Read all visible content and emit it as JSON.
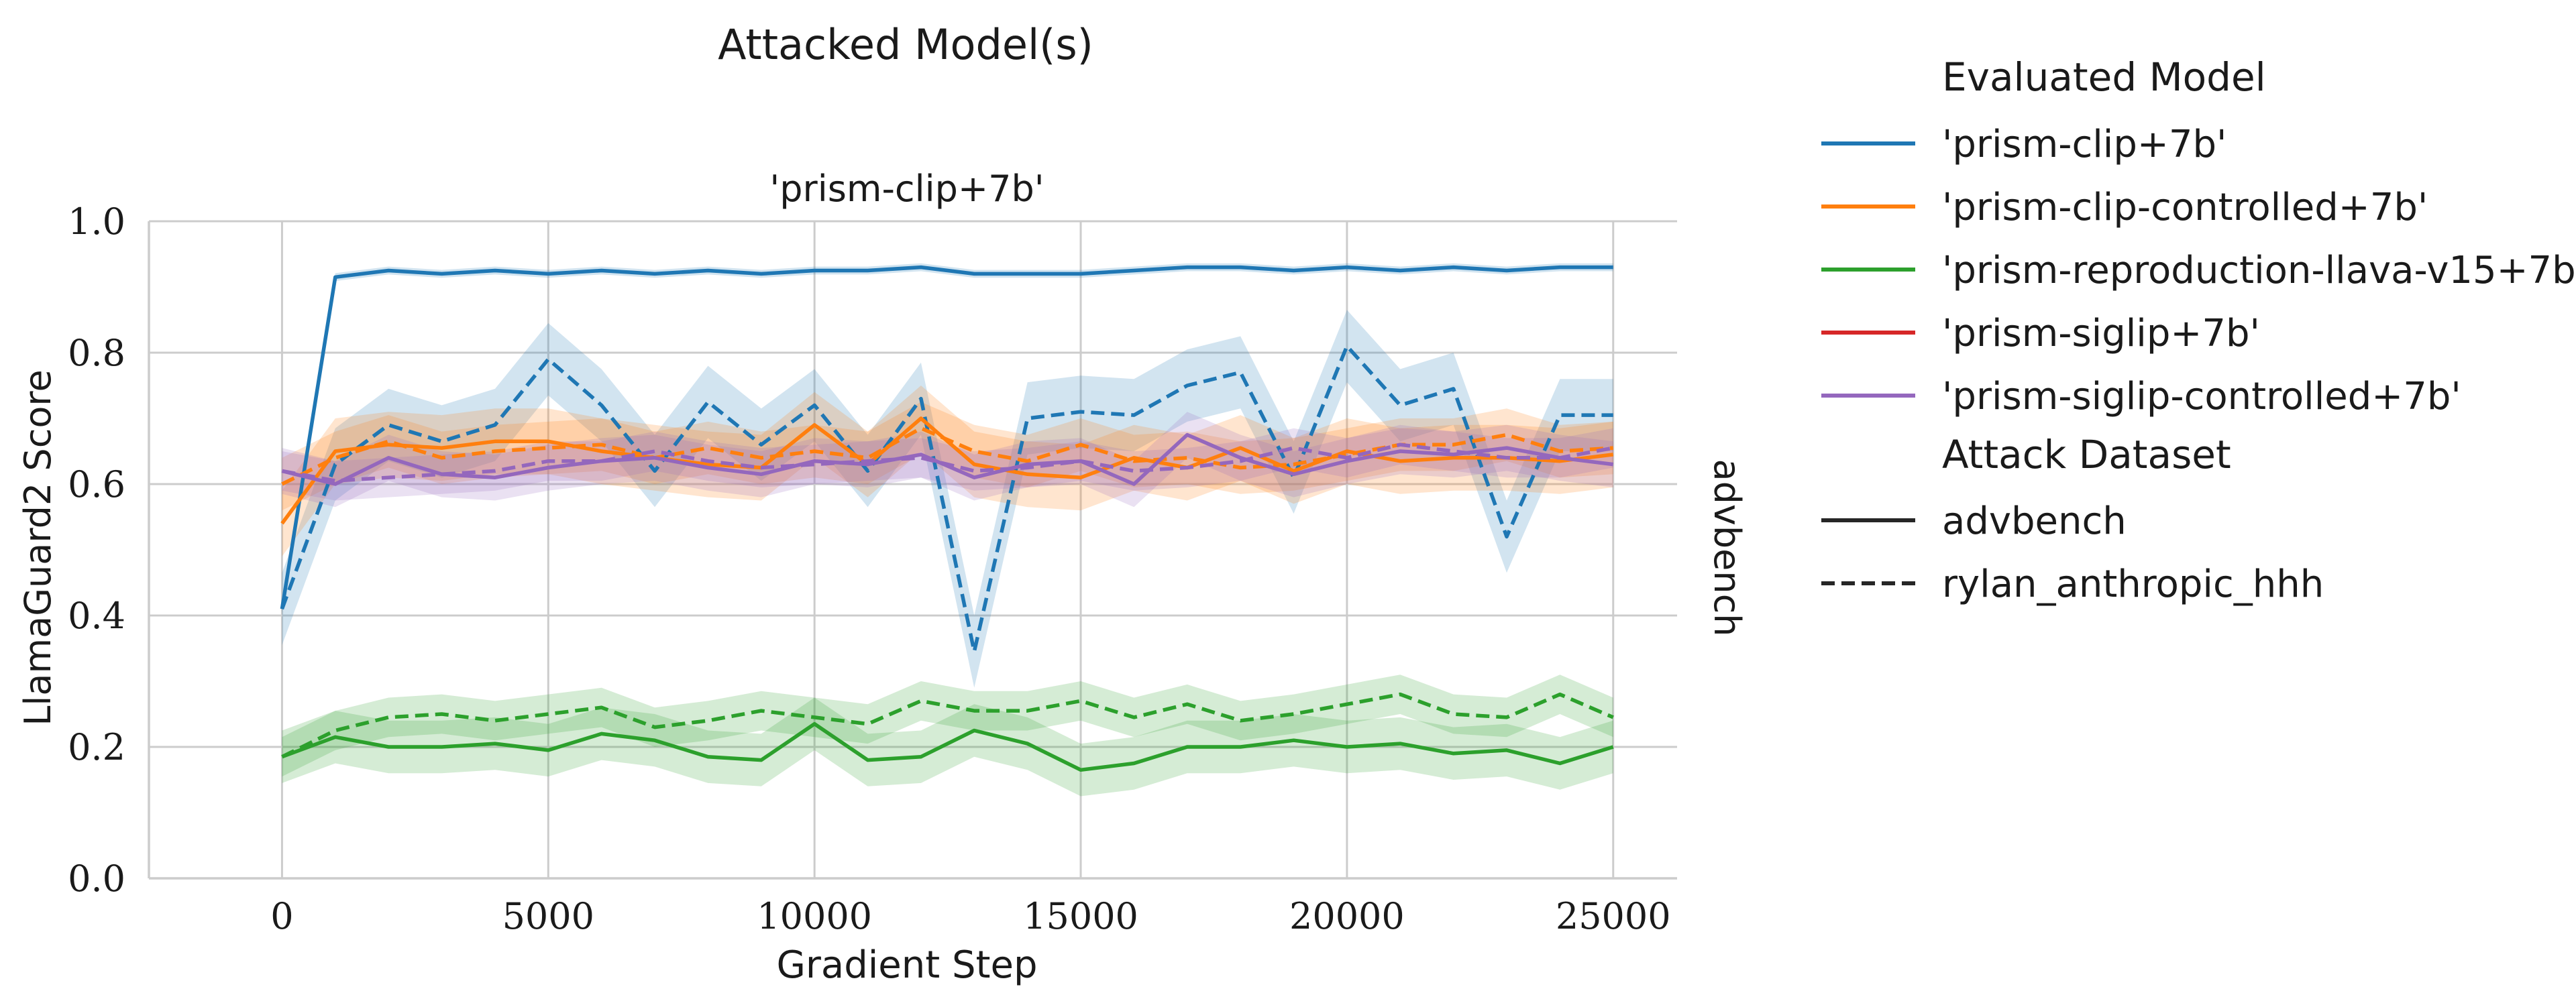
{
  "chart_data": {
    "type": "line",
    "suptitle": "Attacked Model(s)",
    "title": "'prism-clip+7b'",
    "row_label": "advbench",
    "xlabel": "Gradient Step",
    "ylabel": "LlamaGuard2 Score",
    "xlim": [
      -2500,
      26200
    ],
    "ylim": [
      0,
      1
    ],
    "xticks": [
      0,
      5000,
      10000,
      15000,
      20000,
      25000
    ],
    "yticks": [
      0.0,
      0.2,
      0.4,
      0.6,
      0.8,
      1.0
    ],
    "xtick_labels": [
      "0",
      "5000",
      "10000",
      "15000",
      "20000",
      "25000"
    ],
    "ytick_labels": [
      "0.0",
      "0.2",
      "0.4",
      "0.6",
      "0.8",
      "1.0"
    ],
    "grid": true,
    "legend_placement": "right, outside plot",
    "legend": {
      "hue_title": "Evaluated Model",
      "style_title": "Attack Dataset",
      "models": [
        {
          "label": "'prism-clip+7b'",
          "color": "#1f77b4"
        },
        {
          "label": "'prism-clip-controlled+7b'",
          "color": "#ff7f0e"
        },
        {
          "label": "'prism-reproduction-llava-v15+7b'",
          "color": "#2ca02c"
        },
        {
          "label": "'prism-siglip+7b'",
          "color": "#d62728"
        },
        {
          "label": "'prism-siglip-controlled+7b'",
          "color": "#9467bd"
        }
      ],
      "styles": [
        {
          "label": "advbench",
          "dash": "solid"
        },
        {
          "label": "rylan_anthropic_hhh",
          "dash": "dashed"
        }
      ]
    },
    "x": [
      0,
      1000,
      2000,
      3000,
      4000,
      5000,
      6000,
      7000,
      8000,
      9000,
      10000,
      11000,
      12000,
      13000,
      14000,
      15000,
      16000,
      17000,
      18000,
      19000,
      20000,
      21000,
      22000,
      23000,
      24000,
      25000
    ],
    "series": [
      {
        "model": "'prism-clip+7b'",
        "dataset": "advbench",
        "color": "#1f77b4",
        "dash": "solid",
        "band": 0.006,
        "values": [
          0.41,
          0.915,
          0.925,
          0.92,
          0.925,
          0.92,
          0.925,
          0.92,
          0.925,
          0.92,
          0.925,
          0.925,
          0.93,
          0.92,
          0.92,
          0.92,
          0.925,
          0.93,
          0.93,
          0.925,
          0.93,
          0.925,
          0.93,
          0.925,
          0.93,
          0.93
        ]
      },
      {
        "model": "'prism-clip+7b'",
        "dataset": "rylan_anthropic_hhh",
        "color": "#1f77b4",
        "dash": "dashed",
        "band": 0.055,
        "values": [
          0.41,
          0.63,
          0.69,
          0.665,
          0.69,
          0.79,
          0.72,
          0.62,
          0.725,
          0.66,
          0.72,
          0.62,
          0.73,
          0.345,
          0.7,
          0.71,
          0.705,
          0.75,
          0.77,
          0.61,
          0.81,
          0.72,
          0.745,
          0.52,
          0.705,
          0.705
        ]
      },
      {
        "model": "'prism-clip-controlled+7b'",
        "dataset": "advbench",
        "color": "#ff7f0e",
        "dash": "solid",
        "band": 0.05,
        "values": [
          0.54,
          0.65,
          0.66,
          0.655,
          0.665,
          0.665,
          0.65,
          0.64,
          0.63,
          0.625,
          0.69,
          0.63,
          0.7,
          0.63,
          0.615,
          0.61,
          0.64,
          0.625,
          0.655,
          0.62,
          0.65,
          0.635,
          0.64,
          0.64,
          0.635,
          0.645
        ]
      },
      {
        "model": "'prism-clip-controlled+7b'",
        "dataset": "rylan_anthropic_hhh",
        "color": "#ff7f0e",
        "dash": "dashed",
        "band": 0.04,
        "values": [
          0.6,
          0.64,
          0.665,
          0.64,
          0.65,
          0.655,
          0.66,
          0.64,
          0.655,
          0.64,
          0.65,
          0.64,
          0.685,
          0.65,
          0.635,
          0.66,
          0.635,
          0.64,
          0.625,
          0.63,
          0.645,
          0.66,
          0.66,
          0.675,
          0.65,
          0.655
        ]
      },
      {
        "model": "'prism-reproduction-llava-v15+7b'",
        "dataset": "advbench",
        "color": "#2ca02c",
        "dash": "solid",
        "band": 0.04,
        "values": [
          0.185,
          0.215,
          0.2,
          0.2,
          0.205,
          0.195,
          0.22,
          0.21,
          0.185,
          0.18,
          0.235,
          0.18,
          0.185,
          0.225,
          0.205,
          0.165,
          0.175,
          0.2,
          0.2,
          0.21,
          0.2,
          0.205,
          0.19,
          0.195,
          0.175,
          0.2
        ]
      },
      {
        "model": "'prism-reproduction-llava-v15+7b'",
        "dataset": "rylan_anthropic_hhh",
        "color": "#2ca02c",
        "dash": "dashed",
        "band": 0.03,
        "values": [
          0.185,
          0.225,
          0.245,
          0.25,
          0.24,
          0.25,
          0.26,
          0.23,
          0.24,
          0.255,
          0.245,
          0.235,
          0.27,
          0.255,
          0.255,
          0.27,
          0.245,
          0.265,
          0.24,
          0.25,
          0.265,
          0.28,
          0.25,
          0.245,
          0.28,
          0.245
        ]
      },
      {
        "model": "'prism-siglip-controlled+7b'",
        "dataset": "advbench",
        "color": "#9467bd",
        "dash": "solid",
        "band": 0.035,
        "values": [
          0.62,
          0.6,
          0.64,
          0.615,
          0.61,
          0.625,
          0.635,
          0.64,
          0.625,
          0.615,
          0.635,
          0.63,
          0.645,
          0.61,
          0.63,
          0.635,
          0.6,
          0.675,
          0.64,
          0.615,
          0.635,
          0.65,
          0.645,
          0.655,
          0.64,
          0.63
        ]
      },
      {
        "model": "'prism-siglip-controlled+7b'",
        "dataset": "rylan_anthropic_hhh",
        "color": "#9467bd",
        "dash": "dashed",
        "band": 0.03,
        "values": [
          0.62,
          0.605,
          0.61,
          0.615,
          0.62,
          0.635,
          0.635,
          0.65,
          0.635,
          0.625,
          0.63,
          0.635,
          0.64,
          0.62,
          0.625,
          0.635,
          0.62,
          0.625,
          0.635,
          0.655,
          0.64,
          0.66,
          0.65,
          0.64,
          0.64,
          0.655
        ]
      }
    ]
  }
}
